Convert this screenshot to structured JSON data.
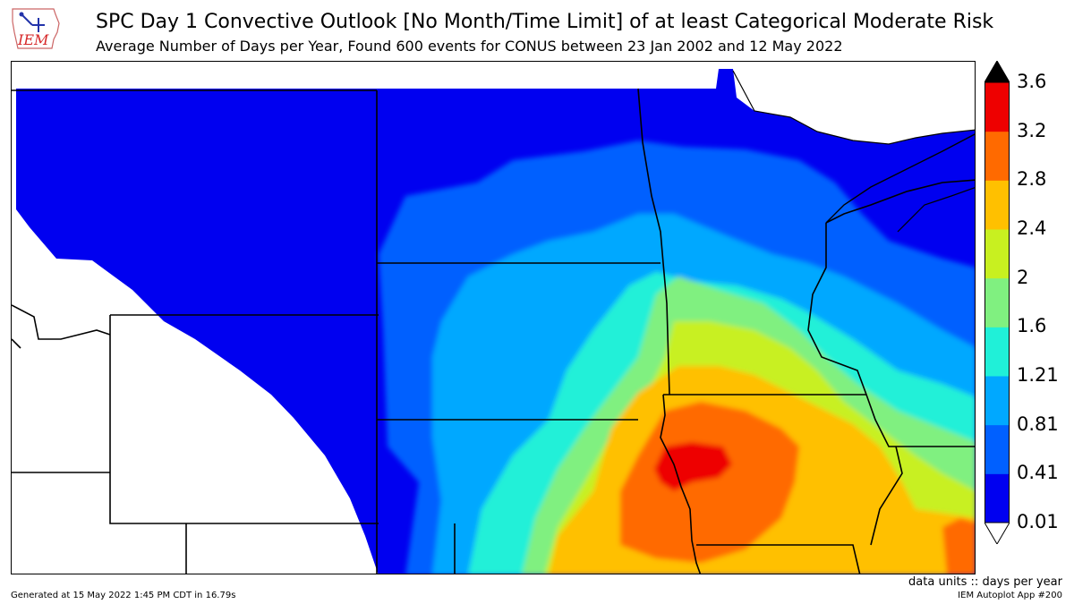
{
  "header": {
    "title": "SPC Day 1 Convective Outlook [No Month/Time Limit] of at least Categorical Moderate Risk",
    "subtitle": "Average Number of Days per Year, Found 600 events for CONUS between 23 Jan 2002 and 12 May 2022"
  },
  "logo": {
    "text": "IEM",
    "color": "#d62728"
  },
  "colorbar": {
    "ticks": [
      "3.6",
      "3.2",
      "2.8",
      "2.4",
      "2",
      "1.6",
      "1.21",
      "0.81",
      "0.41",
      "0.01"
    ],
    "colors": [
      "#0000f0",
      "#0060ff",
      "#00a8ff",
      "#20f0d8",
      "#80f080",
      "#c8f020",
      "#ffc000",
      "#ff6a00",
      "#ee0000"
    ],
    "over_color": "#000000",
    "under_color": "#ffffff"
  },
  "footer": {
    "units": "data units :: days per year",
    "generated": "Generated at 15 May 2022 1:45 PM CDT in 16.79s",
    "app": "IEM Autoplot App #200"
  }
}
